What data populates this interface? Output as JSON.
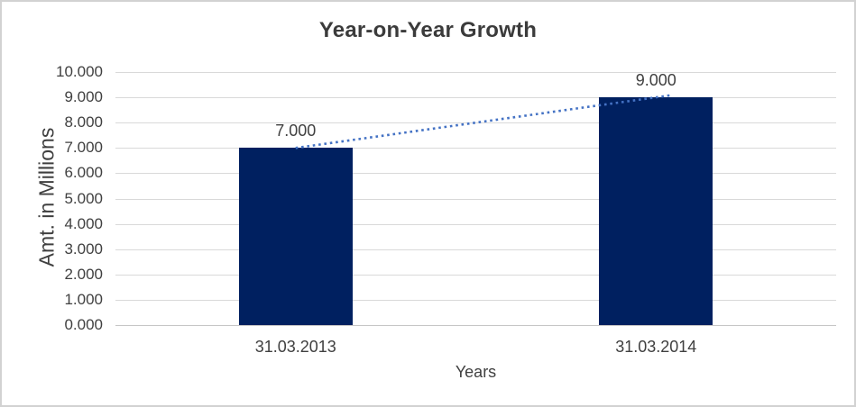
{
  "chart_data": {
    "type": "bar",
    "title": "Year-on-Year Growth",
    "xlabel": "Years",
    "ylabel": "Amt. in Millions",
    "categories": [
      "31.03.2013",
      "31.03.2014"
    ],
    "values": [
      7,
      9
    ],
    "value_labels": [
      "7.000",
      "9.000"
    ],
    "ylim": [
      0,
      10
    ],
    "ytick_values": [
      0,
      1,
      2,
      3,
      4,
      5,
      6,
      7,
      8,
      9,
      10
    ],
    "ytick_labels": [
      "0.000",
      "1.000",
      "2.000",
      "3.000",
      "4.000",
      "5.000",
      "6.000",
      "7.000",
      "8.000",
      "9.000",
      "10.000"
    ],
    "grid": "horizontal",
    "legend": "none",
    "bar_color": "#002060",
    "gridline_color": "#d9d9d9",
    "axis_line_color": "#c6c6c6",
    "text_color": "#404040",
    "trendline": {
      "type": "linear",
      "style": "dotted",
      "color": "#4472c4"
    }
  }
}
